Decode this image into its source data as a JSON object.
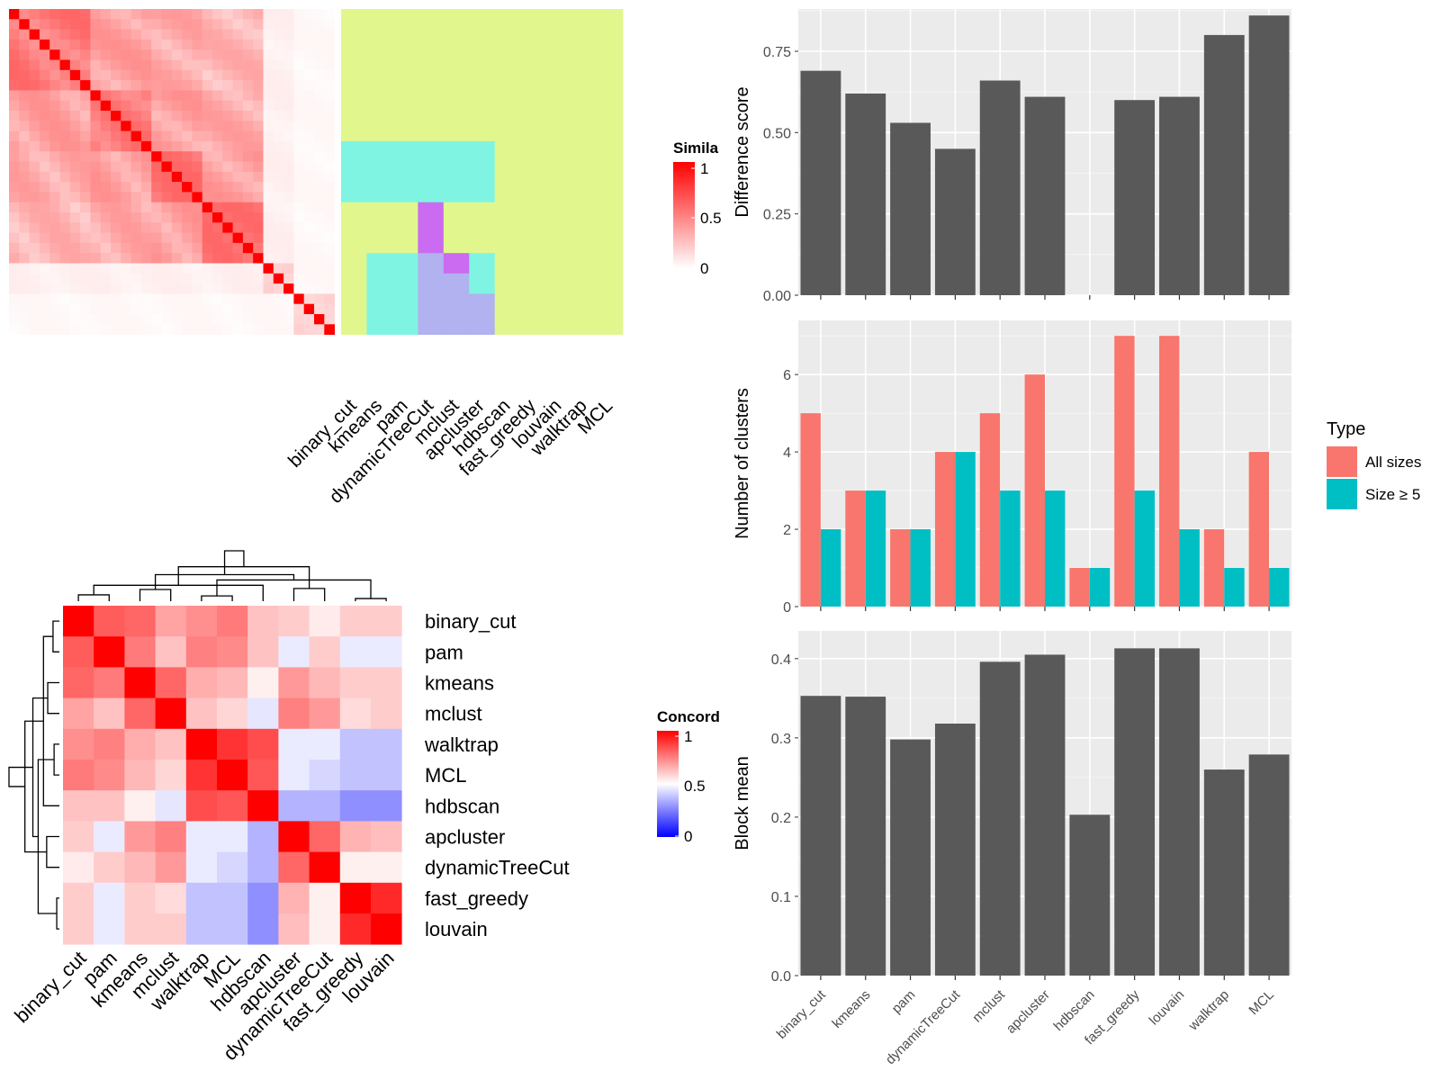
{
  "chart_data": [
    {
      "type": "heatmap",
      "panel": "similarity-heatmap-with-partitions",
      "legend_title": "Simila",
      "legend_ticks": [
        "1",
        "0.5",
        "0"
      ],
      "legend_colors": {
        "low": "#ffffff",
        "high": "#ff0000"
      },
      "n_items": 32,
      "partition_methods": [
        "binary_cut",
        "kmeans",
        "pam",
        "dynamicTreeCut",
        "mclust",
        "apcluster",
        "hdbscan",
        "fast_greedy",
        "louvain",
        "walktrap",
        "MCL"
      ],
      "partition_palette": [
        "#e1f78e",
        "#80f4e2",
        "#b1b2ef",
        "#ca6bf2",
        "#ed7886",
        "#e2b0f5"
      ],
      "partition_assignments": [
        [
          0,
          0,
          0,
          0,
          0,
          0,
          0,
          0,
          0,
          0,
          0,
          0,
          0,
          1,
          1,
          1,
          1,
          1,
          1,
          0,
          0,
          0,
          0,
          0,
          0,
          0,
          0,
          0,
          0,
          0,
          0,
          0
        ],
        [
          0,
          0,
          0,
          0,
          0,
          0,
          0,
          0,
          0,
          0,
          0,
          0,
          0,
          1,
          1,
          1,
          1,
          1,
          1,
          0,
          0,
          0,
          0,
          0,
          1,
          1,
          1,
          1,
          1,
          1,
          1,
          1
        ],
        [
          0,
          0,
          0,
          0,
          0,
          0,
          0,
          0,
          0,
          0,
          0,
          0,
          0,
          1,
          1,
          1,
          1,
          1,
          1,
          0,
          0,
          0,
          0,
          0,
          1,
          1,
          1,
          1,
          1,
          1,
          1,
          1
        ],
        [
          0,
          0,
          0,
          0,
          0,
          0,
          0,
          0,
          0,
          0,
          0,
          0,
          0,
          1,
          1,
          1,
          1,
          1,
          1,
          3,
          3,
          3,
          3,
          3,
          2,
          2,
          2,
          2,
          2,
          2,
          2,
          2
        ],
        [
          0,
          0,
          0,
          0,
          0,
          0,
          0,
          0,
          0,
          0,
          0,
          0,
          0,
          1,
          1,
          1,
          1,
          1,
          1,
          0,
          0,
          0,
          0,
          0,
          3,
          3,
          2,
          2,
          2,
          2,
          2,
          2
        ],
        [
          0,
          0,
          0,
          0,
          0,
          0,
          0,
          0,
          0,
          0,
          0,
          0,
          0,
          1,
          1,
          1,
          1,
          1,
          1,
          0,
          0,
          0,
          0,
          0,
          1,
          1,
          1,
          1,
          2,
          2,
          2,
          2
        ],
        [
          0,
          0,
          0,
          0,
          0,
          0,
          0,
          0,
          0,
          0,
          0,
          0,
          0,
          0,
          0,
          0,
          0,
          0,
          0,
          0,
          0,
          0,
          0,
          0,
          0,
          0,
          0,
          0,
          0,
          0,
          0,
          0
        ],
        [
          0,
          0,
          0,
          0,
          0,
          0,
          0,
          0,
          0,
          0,
          0,
          0,
          0,
          0,
          0,
          0,
          0,
          0,
          0,
          0,
          0,
          0,
          0,
          0,
          0,
          0,
          0,
          0,
          0,
          0,
          0,
          0
        ],
        [
          0,
          0,
          0,
          0,
          0,
          0,
          0,
          0,
          0,
          0,
          0,
          0,
          0,
          0,
          0,
          0,
          0,
          0,
          0,
          0,
          0,
          0,
          0,
          0,
          0,
          0,
          0,
          0,
          0,
          0,
          0,
          0
        ],
        [
          0,
          0,
          0,
          0,
          0,
          0,
          0,
          0,
          0,
          0,
          0,
          0,
          0,
          0,
          0,
          0,
          0,
          0,
          0,
          0,
          0,
          0,
          0,
          0,
          0,
          0,
          0,
          0,
          0,
          0,
          0,
          0
        ],
        [
          0,
          0,
          0,
          0,
          0,
          0,
          0,
          0,
          0,
          0,
          0,
          0,
          0,
          0,
          0,
          0,
          0,
          0,
          0,
          0,
          0,
          0,
          0,
          0,
          0,
          0,
          0,
          0,
          0,
          0,
          0,
          0
        ]
      ]
    },
    {
      "type": "heatmap",
      "panel": "concordance-heatmap",
      "legend_title": "Concord",
      "legend_ticks": [
        "1",
        "0.5",
        "0"
      ],
      "legend_colors": {
        "low": "#0000ff",
        "mid": "#ffffff",
        "high": "#ff0000"
      },
      "row_labels": [
        "binary_cut",
        "pam",
        "kmeans",
        "mclust",
        "walktrap",
        "MCL",
        "hdbscan",
        "apcluster",
        "dynamicTreeCut",
        "fast_greedy",
        "louvain"
      ],
      "col_labels": [
        "binary_cut",
        "pam",
        "kmeans",
        "mclust",
        "walktrap",
        "MCL",
        "hdbscan",
        "apcluster",
        "dynamicTreeCut",
        "fast_greedy",
        "louvain"
      ],
      "values": [
        [
          1.0,
          0.82,
          0.8,
          0.68,
          0.72,
          0.76,
          0.62,
          0.6,
          0.54,
          0.6,
          0.6
        ],
        [
          0.82,
          1.0,
          0.76,
          0.62,
          0.75,
          0.73,
          0.62,
          0.46,
          0.6,
          0.46,
          0.46
        ],
        [
          0.8,
          0.76,
          1.0,
          0.8,
          0.66,
          0.64,
          0.53,
          0.7,
          0.64,
          0.6,
          0.6
        ],
        [
          0.68,
          0.62,
          0.8,
          1.0,
          0.62,
          0.58,
          0.45,
          0.75,
          0.7,
          0.57,
          0.6
        ],
        [
          0.72,
          0.75,
          0.66,
          0.62,
          1.0,
          0.9,
          0.85,
          0.46,
          0.46,
          0.38,
          0.38
        ],
        [
          0.76,
          0.73,
          0.64,
          0.58,
          0.9,
          1.0,
          0.83,
          0.46,
          0.42,
          0.38,
          0.38
        ],
        [
          0.62,
          0.62,
          0.53,
          0.45,
          0.85,
          0.83,
          1.0,
          0.35,
          0.35,
          0.28,
          0.28
        ],
        [
          0.6,
          0.46,
          0.7,
          0.75,
          0.46,
          0.46,
          0.35,
          1.0,
          0.8,
          0.65,
          0.63
        ],
        [
          0.54,
          0.6,
          0.64,
          0.7,
          0.46,
          0.42,
          0.35,
          0.8,
          1.0,
          0.53,
          0.53
        ],
        [
          0.6,
          0.46,
          0.6,
          0.57,
          0.38,
          0.38,
          0.28,
          0.65,
          0.53,
          1.0,
          0.92
        ],
        [
          0.6,
          0.46,
          0.6,
          0.6,
          0.38,
          0.38,
          0.28,
          0.63,
          0.53,
          0.92,
          1.0
        ]
      ]
    },
    {
      "type": "bar",
      "panel": "difference-score",
      "categories": [
        "binary_cut",
        "kmeans",
        "pam",
        "dynamicTreeCut",
        "mclust",
        "apcluster",
        "hdbscan",
        "fast_greedy",
        "louvain",
        "walktrap",
        "MCL"
      ],
      "values": [
        0.69,
        0.62,
        0.53,
        0.45,
        0.66,
        0.61,
        null,
        0.6,
        0.61,
        0.8,
        0.86
      ],
      "ylabel": "Difference score",
      "ylim": [
        0,
        0.88
      ],
      "yticks": [
        0,
        0.25,
        0.5,
        0.75
      ],
      "ytick_labels": [
        "0.00",
        "0.25",
        "0.50",
        "0.75"
      ],
      "bar_color": "#595959",
      "grid": true
    },
    {
      "type": "bar",
      "panel": "number-of-clusters",
      "categories": [
        "binary_cut",
        "kmeans",
        "pam",
        "dynamicTreeCut",
        "mclust",
        "apcluster",
        "hdbscan",
        "fast_greedy",
        "louvain",
        "walktrap",
        "MCL"
      ],
      "series": [
        {
          "name": "All sizes",
          "values": [
            5,
            3,
            2,
            4,
            5,
            6,
            1,
            7,
            7,
            2,
            4
          ],
          "color": "#f8766d"
        },
        {
          "name": "Size ≥ 5",
          "values": [
            2,
            3,
            2,
            4,
            3,
            3,
            1,
            3,
            2,
            1,
            1
          ],
          "color": "#00bfc4"
        }
      ],
      "ylabel": "Number of clusters",
      "ylim": [
        0,
        7.4
      ],
      "yticks": [
        0,
        2,
        4,
        6
      ],
      "ytick_labels": [
        "0",
        "2",
        "4",
        "6"
      ],
      "legend_title": "Type",
      "legend_placement": "right",
      "grid": true
    },
    {
      "type": "bar",
      "panel": "block-mean",
      "categories": [
        "binary_cut",
        "kmeans",
        "pam",
        "dynamicTreeCut",
        "mclust",
        "apcluster",
        "hdbscan",
        "fast_greedy",
        "louvain",
        "walktrap",
        "MCL"
      ],
      "values": [
        0.353,
        0.352,
        0.298,
        0.318,
        0.396,
        0.405,
        0.203,
        0.413,
        0.413,
        0.26,
        0.279
      ],
      "ylabel": "Block mean",
      "ylim": [
        0,
        0.435
      ],
      "yticks": [
        0,
        0.1,
        0.2,
        0.3,
        0.4
      ],
      "ytick_labels": [
        "0.0",
        "0.1",
        "0.2",
        "0.3",
        "0.4"
      ],
      "bar_color": "#595959",
      "grid": true
    }
  ]
}
